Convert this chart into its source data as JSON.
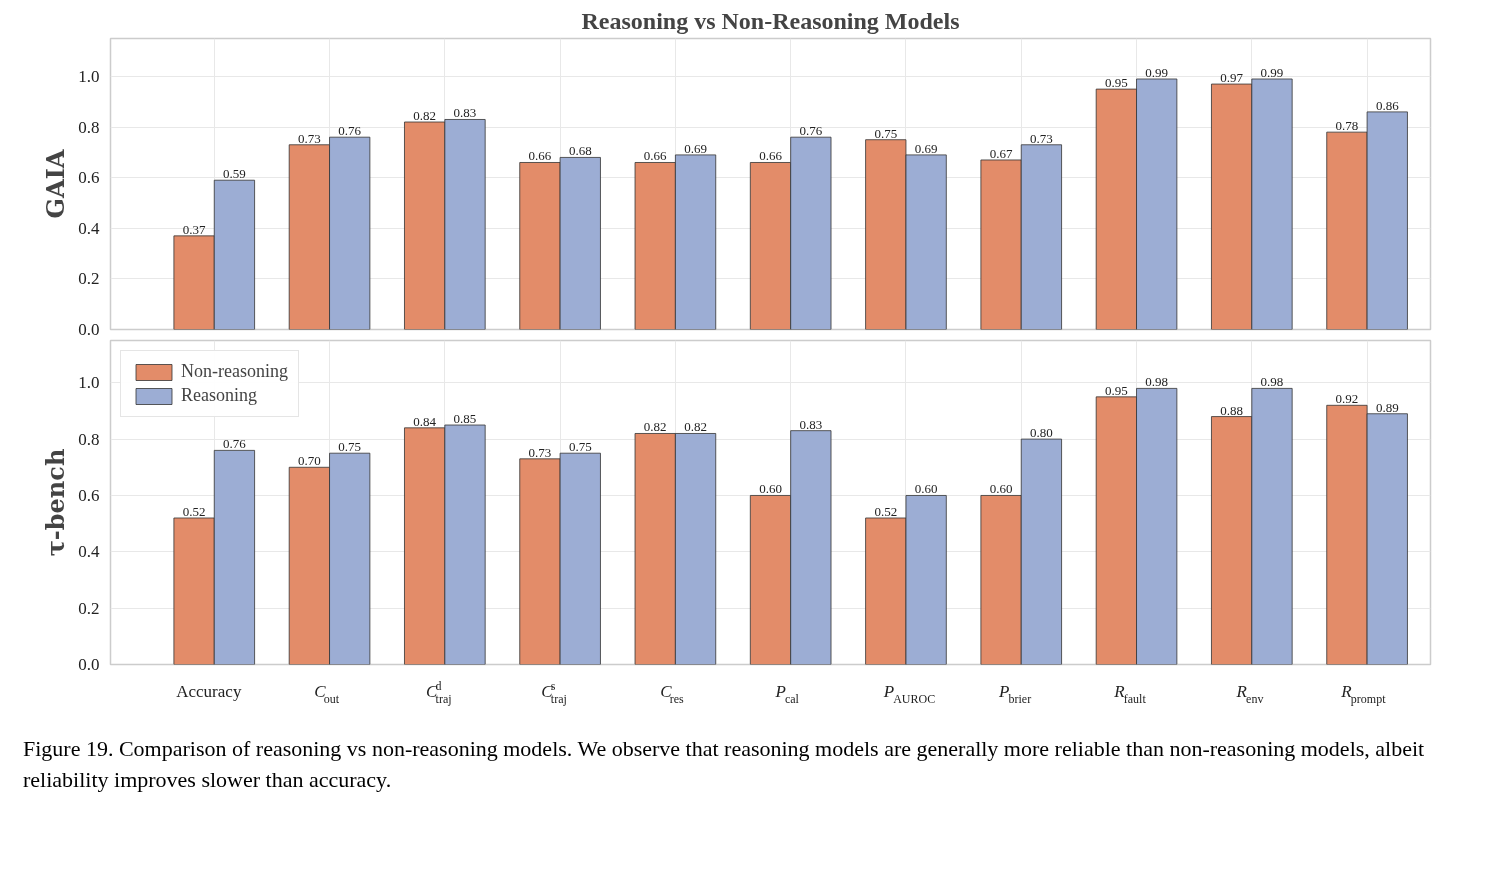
{
  "chart_data": [
    {
      "type": "bar",
      "title": "Reasoning vs Non-Reasoning Models",
      "ylabel": "GAIA",
      "categories": [
        "Accuracy",
        "C$_{out}$",
        "C$^{d}$$_{traj}$",
        "C$^{s}$$_{traj}$",
        "C$_{res}$",
        "P$_{cal}$",
        "P$_{AUROC}$",
        "P$_{brier}$",
        "R$_{fault}$",
        "R$_{env}$",
        "R$_{prompt}$"
      ],
      "series": [
        {
          "color": "#e38c69",
          "values": [
            0.37,
            0.73,
            0.82,
            0.66,
            0.66,
            0.66,
            0.75,
            0.67,
            0.95,
            0.97,
            0.78
          ],
          "value_labels": [
            "0.37",
            "0.73",
            "0.82",
            "0.66",
            "0.66",
            "0.66",
            "0.75",
            "0.67",
            "0.95",
            "0.97",
            "0.78"
          ]
        },
        {
          "color": "#9cadd4",
          "values": [
            0.59,
            0.76,
            0.83,
            0.68,
            0.69,
            0.76,
            0.69,
            0.73,
            0.99,
            0.99,
            0.86
          ],
          "value_labels": [
            "0.59",
            "0.76",
            "0.83",
            "0.68",
            "0.69",
            "0.76",
            "0.69",
            "0.73",
            "0.99",
            "0.99",
            "0.86"
          ]
        }
      ],
      "ylim": [
        0,
        1.15
      ],
      "yticks": [
        {
          "value": 0,
          "label": "0.0"
        },
        {
          "value": 0.2,
          "label": "0.2"
        },
        {
          "value": 0.4,
          "label": "0.4"
        },
        {
          "value": 0.6,
          "label": "0.6"
        },
        {
          "value": 0.8,
          "label": "0.8"
        },
        {
          "value": 1,
          "label": "1.0"
        }
      ],
      "grid": true,
      "tick_labels": "y"
    },
    {
      "type": "bar",
      "ylabel": "τ-bench",
      "categories": [
        "Accuracy",
        "C$_{out}$",
        "C$^{d}$$_{traj}$",
        "C$^{s}$$_{traj}$",
        "C$_{res}$",
        "P$_{cal}$",
        "P$_{AUROC}$",
        "P$_{brier}$",
        "R$_{fault}$",
        "R$_{env}$",
        "R$_{prompt}$"
      ],
      "series": [
        {
          "name": "Non-reasoning",
          "color": "#e38c69",
          "values": [
            0.52,
            0.7,
            0.84,
            0.73,
            0.82,
            0.6,
            0.52,
            0.6,
            0.95,
            0.88,
            0.92
          ],
          "value_labels": [
            "0.52",
            "0.70",
            "0.84",
            "0.73",
            "0.82",
            "0.60",
            "0.52",
            "0.60",
            "0.95",
            "0.88",
            "0.92"
          ]
        },
        {
          "name": "Reasoning",
          "color": "#9cadd4",
          "values": [
            0.76,
            0.75,
            0.85,
            0.75,
            0.82,
            0.83,
            0.6,
            0.8,
            0.98,
            0.98,
            0.89
          ],
          "value_labels": [
            "0.76",
            "0.75",
            "0.85",
            "0.75",
            "0.82",
            "0.83",
            "0.60",
            "0.80",
            "0.98",
            "0.98",
            "0.89"
          ]
        }
      ],
      "ylim": [
        0,
        1.15
      ],
      "yticks": [
        {
          "value": 0,
          "label": "0.0"
        },
        {
          "value": 0.2,
          "label": "0.2"
        },
        {
          "value": 0.4,
          "label": "0.4"
        },
        {
          "value": 0.6,
          "label": "0.6"
        },
        {
          "value": 0.8,
          "label": "0.8"
        },
        {
          "value": 1,
          "label": "1.0"
        }
      ],
      "grid": true,
      "legend": "top left",
      "annotations": [
        "Figure 19. Comparison of reasoning vs non-reasoning models. We observe that reasoning models are generally more reliable than non-reasoning models, albeit reliability improves slower than accuracy."
      ]
    }
  ]
}
